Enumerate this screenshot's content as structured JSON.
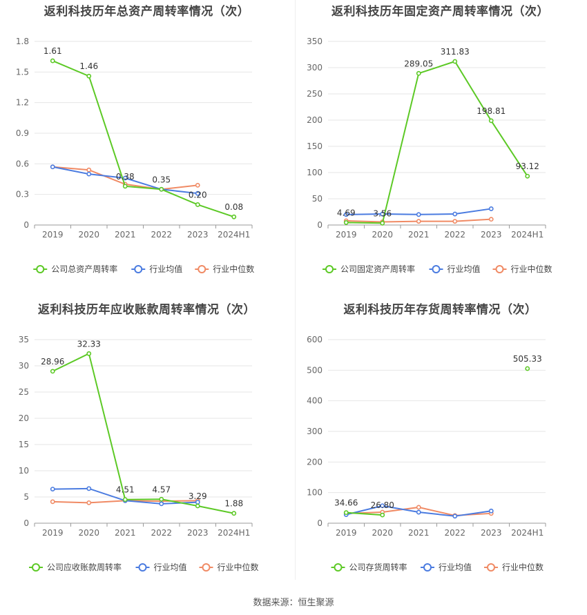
{
  "source": "数据来源：恒生聚源",
  "chart_data": [
    {
      "type": "line",
      "title": "返利科技历年总资产周转率情况（次）",
      "categories": [
        "2019",
        "2020",
        "2021",
        "2022",
        "2023",
        "2024H1"
      ],
      "ylim": [
        0,
        1.8
      ],
      "yticks": [
        "0",
        "0.3",
        "0.6",
        "0.9",
        "1.2",
        "1.5",
        "1.8"
      ],
      "series": [
        {
          "name": "公司总资产周转率",
          "color": "#5cc925",
          "values": [
            1.61,
            1.46,
            0.38,
            0.35,
            0.2,
            0.08
          ],
          "labels": [
            "1.61",
            "1.46",
            "0.38",
            "0.35",
            "0.20",
            "0.08"
          ]
        },
        {
          "name": "行业均值",
          "color": "#4a7be0",
          "values": [
            0.57,
            0.5,
            0.46,
            0.35,
            0.31,
            null
          ]
        },
        {
          "name": "行业中位数",
          "color": "#f08a64",
          "values": [
            0.57,
            0.54,
            0.4,
            0.35,
            0.39,
            null
          ]
        }
      ]
    },
    {
      "type": "line",
      "title": "返利科技历年固定资产周转率情况（次）",
      "categories": [
        "2019",
        "2020",
        "2021",
        "2022",
        "2023",
        "2024H1"
      ],
      "ylim": [
        0,
        350
      ],
      "yticks": [
        "0",
        "50",
        "100",
        "150",
        "200",
        "250",
        "300",
        "350"
      ],
      "series": [
        {
          "name": "公司固定资产周转率",
          "color": "#5cc925",
          "values": [
            4.69,
            3.56,
            289.05,
            311.83,
            198.81,
            93.12
          ],
          "labels": [
            "4.69",
            "3.56",
            "289.05",
            "311.83",
            "198.81",
            "93.12"
          ]
        },
        {
          "name": "行业均值",
          "color": "#4a7be0",
          "values": [
            20,
            21,
            20,
            21,
            31,
            null
          ]
        },
        {
          "name": "行业中位数",
          "color": "#f08a64",
          "values": [
            8,
            6,
            7,
            7,
            11,
            null
          ]
        }
      ]
    },
    {
      "type": "line",
      "title": "返利科技历年应收账款周转率情况（次）",
      "categories": [
        "2019",
        "2020",
        "2021",
        "2022",
        "2023",
        "2024H1"
      ],
      "ylim": [
        0,
        35
      ],
      "yticks": [
        "0",
        "5",
        "10",
        "15",
        "20",
        "25",
        "30",
        "35"
      ],
      "series": [
        {
          "name": "公司应收账款周转率",
          "color": "#5cc925",
          "values": [
            28.96,
            32.33,
            4.51,
            4.57,
            3.29,
            1.88
          ],
          "labels": [
            "28.96",
            "32.33",
            "4.51",
            "4.57",
            "3.29",
            "1.88"
          ]
        },
        {
          "name": "行业均值",
          "color": "#4a7be0",
          "values": [
            6.5,
            6.6,
            4.3,
            3.7,
            4.0,
            null
          ]
        },
        {
          "name": "行业中位数",
          "color": "#f08a64",
          "values": [
            4.1,
            3.9,
            4.3,
            4.2,
            4.3,
            null
          ]
        }
      ]
    },
    {
      "type": "line",
      "title": "返利科技历年存货周转率情况（次）",
      "categories": [
        "2019",
        "2020",
        "2021",
        "2022",
        "2023",
        "2024H1"
      ],
      "ylim": [
        0,
        600
      ],
      "yticks": [
        "0",
        "100",
        "200",
        "300",
        "400",
        "500",
        "600"
      ],
      "series": [
        {
          "name": "公司存货周转率",
          "color": "#5cc925",
          "values": [
            34.66,
            26.8,
            null,
            null,
            null,
            505.33
          ],
          "labels": [
            "34.66",
            "26.80",
            "",
            "",
            "",
            "505.33"
          ]
        },
        {
          "name": "行业均值",
          "color": "#4a7be0",
          "values": [
            28,
            57,
            36,
            23,
            40,
            null
          ]
        },
        {
          "name": "行业中位数",
          "color": "#f08a64",
          "values": [
            32,
            36,
            52,
            25,
            32,
            null
          ]
        }
      ]
    }
  ]
}
